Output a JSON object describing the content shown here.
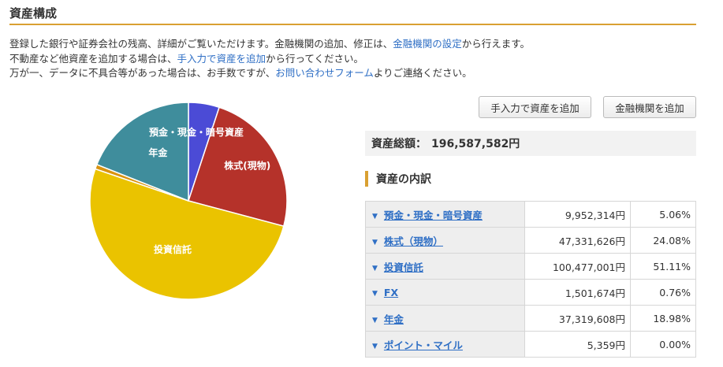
{
  "page": {
    "title": "資産構成"
  },
  "description": {
    "line1_pre": "登録した銀行や証券会社の残高、詳細がご覧いただけます。金融機関の追加、修正は、",
    "line1_link": "金融機関の設定",
    "line1_post": "から行えます。",
    "line2_pre": "不動産など他資産を追加する場合は、",
    "line2_link": "手入力で資産を追加",
    "line2_post": "から行ってください。",
    "line3_pre": "万が一、データに不具合等があった場合は、お手数ですが、",
    "line3_link": "お問い合わせフォーム",
    "line3_post": "よりご連絡ください。"
  },
  "buttons": {
    "add_manual": "手入力で資産を追加",
    "add_institution": "金融機関を追加"
  },
  "total": {
    "label": "資産総額：",
    "value": "196,587,582円"
  },
  "breakdown": {
    "heading": "資産の内訳"
  },
  "assets": [
    {
      "name": "預金・現金・暗号資産",
      "amount": "9,952,314円",
      "percent": "5.06%"
    },
    {
      "name": "株式（現物）",
      "amount": "47,331,626円",
      "percent": "24.08%"
    },
    {
      "name": "投資信託",
      "amount": "100,477,001円",
      "percent": "51.11%"
    },
    {
      "name": "FX",
      "amount": "1,501,674円",
      "percent": "0.76%"
    },
    {
      "name": "年金",
      "amount": "37,319,608円",
      "percent": "18.98%"
    },
    {
      "name": "ポイント・マイル",
      "amount": "5,359円",
      "percent": "0.00%"
    }
  ],
  "chart_data": {
    "type": "pie",
    "categories": [
      "預金・現金・暗号資産",
      "株式(現物)",
      "投資信託",
      "FX",
      "年金",
      "ポイント・マイル"
    ],
    "values": [
      5.06,
      24.08,
      51.11,
      0.76,
      18.98,
      0.0
    ],
    "colors": [
      "#4b4bd6",
      "#b5322a",
      "#eac300",
      "#d9930f",
      "#3f8d9c",
      "#8a8a8a"
    ],
    "slice_labels": [
      "預金・現金・暗号資産",
      "株式(現物)",
      "投資信託",
      "",
      "年金",
      ""
    ],
    "start_angle_deg": 0,
    "direction": "clockwise"
  }
}
